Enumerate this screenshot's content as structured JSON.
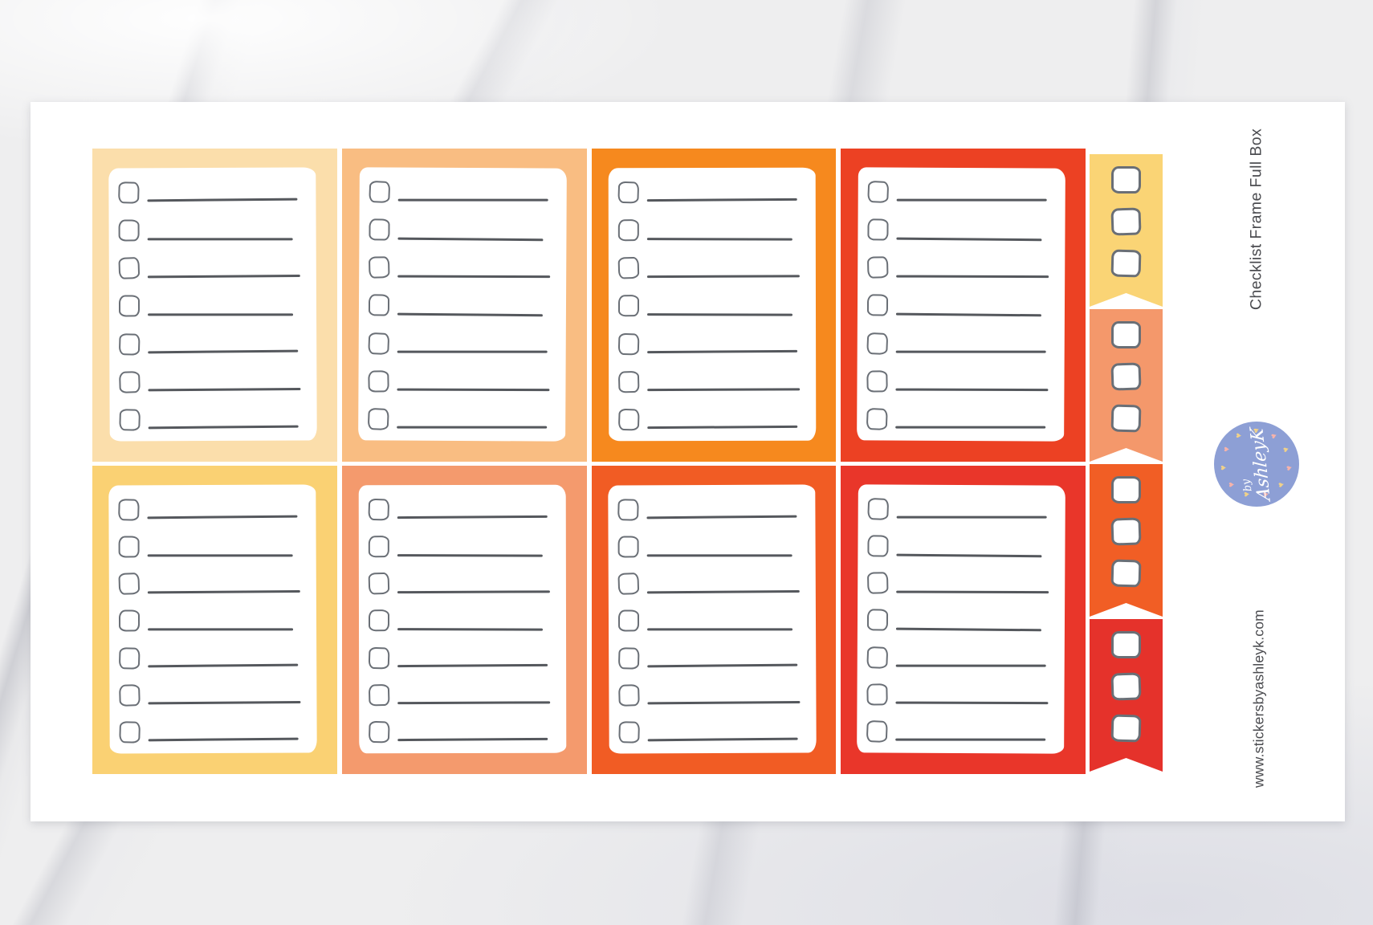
{
  "product": {
    "title": "Checklist Frame Full Box",
    "website": "www.stickersbyashleyk.com"
  },
  "logo": {
    "prefix": "by",
    "name": "AshleyK",
    "circle_color": "#8D9FD5",
    "text_color": "#FFFFFF",
    "heart_colors": [
      "#F0D189",
      "#F6B3AB"
    ]
  },
  "palette": {
    "sheet_color": "#FFFFFF",
    "checkbox_stroke": "#6A6F76",
    "line_color": "#55585D"
  },
  "checklist_boxes": [
    {
      "id": "pale-peach",
      "color": "#FBDEAB",
      "rows": 7
    },
    {
      "id": "light-orange",
      "color": "#F9BD82",
      "rows": 7
    },
    {
      "id": "orange",
      "color": "#F6891E",
      "rows": 7
    },
    {
      "id": "red-orange",
      "color": "#EC4123",
      "rows": 7
    },
    {
      "id": "gold",
      "color": "#FAD173",
      "rows": 7
    },
    {
      "id": "salmon",
      "color": "#F49A6D",
      "rows": 7
    },
    {
      "id": "deep-orange",
      "color": "#F15C24",
      "rows": 7
    },
    {
      "id": "red",
      "color": "#E9362A",
      "rows": 7
    }
  ],
  "flag_strip": [
    {
      "id": "gold",
      "color": "#FAD475",
      "checkboxes": 3
    },
    {
      "id": "salmon",
      "color": "#F4986B",
      "checkboxes": 3
    },
    {
      "id": "deep-orange",
      "color": "#F15E25",
      "checkboxes": 3
    },
    {
      "id": "red",
      "color": "#E5322B",
      "checkboxes": 3
    }
  ]
}
